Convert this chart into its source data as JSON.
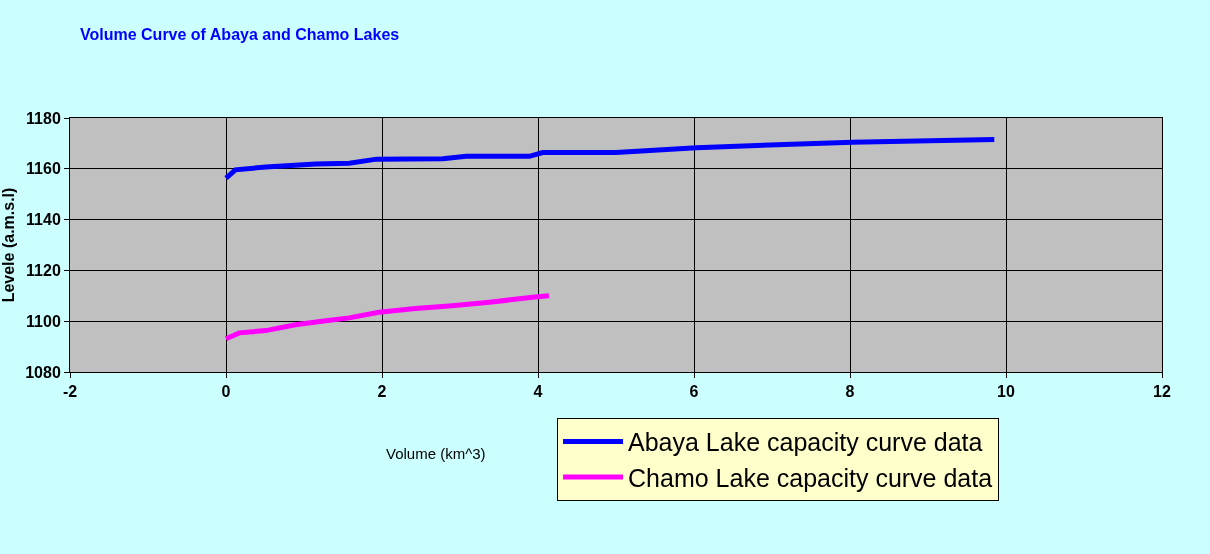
{
  "chart_data": {
    "type": "line",
    "title": "Volume Curve of Abaya and Chamo Lakes",
    "xlabel": "Volume (km^3)",
    "ylabel": "Levele (a.m.s.l)",
    "xlim": [
      -2,
      12
    ],
    "xticks": [
      -2,
      0,
      2,
      4,
      6,
      8,
      10,
      12
    ],
    "ylim": [
      1080,
      1180
    ],
    "yticks": [
      1080,
      1100,
      1120,
      1140,
      1160,
      1180
    ],
    "grid": true,
    "legend": "bottom right",
    "marker": "none",
    "line_style": "solid",
    "series": [
      {
        "name": "Abaya Lake capacity curve data",
        "color": "#0000ff",
        "x": [
          0,
          0.12,
          0.51,
          1.15,
          1.58,
          1.93,
          2.78,
          3.08,
          3.89,
          4.06,
          5.0,
          6.03,
          8.03,
          9.85
        ],
        "values": [
          1156.3,
          1159.6,
          1160.7,
          1161.9,
          1162.2,
          1163.8,
          1164,
          1164.9,
          1164.9,
          1166.4,
          1166.4,
          1168.3,
          1170.5,
          1171.5
        ]
      },
      {
        "name": "Chamo Lake capacity curve data",
        "color": "#ff00ff",
        "x": [
          0,
          0.17,
          0.51,
          0.89,
          1.23,
          1.58,
          1.96,
          2.43,
          2.9,
          3.41,
          3.93,
          4.14
        ],
        "values": [
          1093.1,
          1095.4,
          1096.3,
          1098.6,
          1100,
          1101.3,
          1103.5,
          1105,
          1106.1,
          1107.6,
          1109.4,
          1110
        ]
      }
    ]
  }
}
